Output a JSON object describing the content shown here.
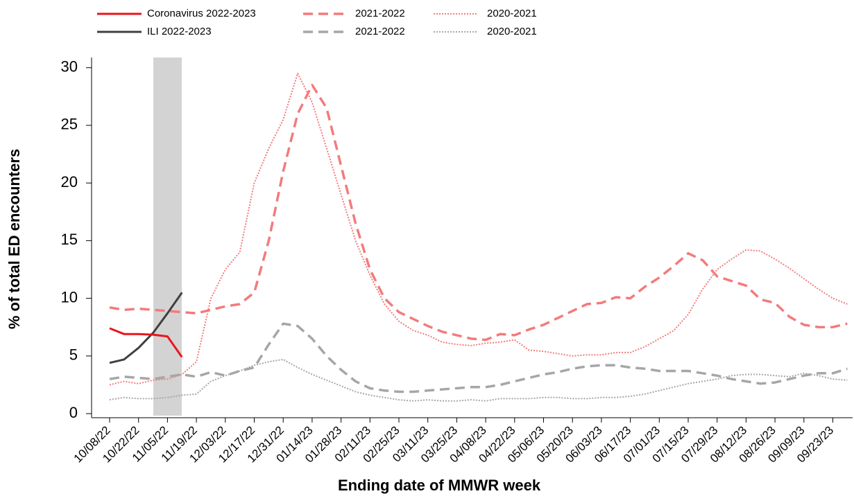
{
  "chart_data": {
    "type": "line",
    "x_label": "Ending date of MMWR week",
    "y_label": "% of total ED encounters",
    "categories": [
      "10/08/22",
      null,
      "10/22/22",
      null,
      "11/05/22",
      null,
      "11/19/22",
      null,
      "12/03/22",
      null,
      "12/17/22",
      null,
      "12/31/22",
      null,
      "01/14/23",
      null,
      "01/28/23",
      null,
      "02/11/23",
      null,
      "02/25/23",
      null,
      "03/11/23",
      null,
      "03/25/23",
      null,
      "04/08/23",
      null,
      "04/22/23",
      null,
      "05/06/23",
      null,
      "05/20/23",
      null,
      "06/03/23",
      null,
      "06/17/23",
      null,
      "07/01/23",
      null,
      "07/15/23",
      null,
      "07/29/23",
      null,
      "08/12/23",
      null,
      "08/26/23",
      null,
      "09/09/23",
      null,
      "09/23/23",
      null
    ],
    "ylim": [
      -0.4,
      30.2
    ],
    "yticks": [
      0,
      5,
      10,
      15,
      20,
      25,
      30
    ],
    "grid": false,
    "legend": "top",
    "series": [
      {
        "name": "Coronavirus 2022-2023",
        "color": "#e8161b",
        "dash": "solid",
        "values": [
          7.4,
          6.9,
          6.9,
          6.85,
          6.7,
          4.9,
          null,
          null,
          null,
          null,
          null,
          null,
          null,
          null,
          null,
          null,
          null,
          null,
          null,
          null,
          null,
          null,
          null,
          null,
          null,
          null,
          null,
          null,
          null,
          null,
          null,
          null,
          null,
          null,
          null,
          null,
          null,
          null,
          null,
          null,
          null,
          null,
          null,
          null,
          null,
          null,
          null,
          null,
          null,
          null,
          null,
          null
        ]
      },
      {
        "name": "ILI 2022-2023",
        "color": "#404040",
        "dash": "solid",
        "values": [
          4.4,
          4.7,
          5.7,
          7.0,
          8.7,
          10.5,
          null,
          null,
          null,
          null,
          null,
          null,
          null,
          null,
          null,
          null,
          null,
          null,
          null,
          null,
          null,
          null,
          null,
          null,
          null,
          null,
          null,
          null,
          null,
          null,
          null,
          null,
          null,
          null,
          null,
          null,
          null,
          null,
          null,
          null,
          null,
          null,
          null,
          null,
          null,
          null,
          null,
          null,
          null,
          null,
          null,
          null
        ]
      },
      {
        "name": "2021-2022",
        "color": "#f27b7b",
        "dash": "dashed",
        "values": [
          9.2,
          9.0,
          9.1,
          9.0,
          8.9,
          8.8,
          8.7,
          9.0,
          9.3,
          9.5,
          10.5,
          15,
          21,
          26,
          28.5,
          26.5,
          21.5,
          16.5,
          12.5,
          10,
          8.8,
          8.2,
          7.6,
          7.1,
          6.8,
          6.5,
          6.4,
          6.9,
          6.8,
          7.3,
          7.7,
          8.3,
          8.9,
          9.5,
          9.6,
          10.1,
          10.0,
          11.0,
          11.8,
          12.8,
          13.9,
          13.3,
          11.9,
          11.5,
          11.1,
          9.9,
          9.6,
          8.4,
          7.7,
          7.5,
          7.5,
          7.8
        ]
      },
      {
        "name": "2021-2022",
        "color": "#a6a6a6",
        "dash": "dashed",
        "values": [
          3.0,
          3.2,
          3.1,
          3.0,
          3.2,
          3.4,
          3.2,
          3.6,
          3.3,
          3.7,
          4.0,
          6.0,
          7.8,
          7.6,
          6.5,
          5.0,
          3.8,
          2.8,
          2.2,
          2.0,
          1.9,
          1.9,
          2.0,
          2.1,
          2.2,
          2.3,
          2.3,
          2.5,
          2.8,
          3.1,
          3.4,
          3.6,
          3.9,
          4.1,
          4.2,
          4.2,
          4.0,
          3.9,
          3.7,
          3.7,
          3.7,
          3.5,
          3.3,
          3.0,
          2.8,
          2.6,
          2.7,
          3.0,
          3.3,
          3.5,
          3.5,
          3.9
        ]
      },
      {
        "name": "2020-2021",
        "color": "#f27b7b",
        "dash": "dotted",
        "values": [
          2.5,
          2.8,
          2.6,
          2.9,
          3.0,
          3.4,
          4.5,
          10,
          12.5,
          14,
          20,
          23,
          25.5,
          29.5,
          27,
          23,
          19,
          15,
          12,
          9.5,
          8,
          7.2,
          6.8,
          6.2,
          6.0,
          5.9,
          6.1,
          6.2,
          6.4,
          5.5,
          5.4,
          5.2,
          5.0,
          5.1,
          5.1,
          5.3,
          5.3,
          5.8,
          6.5,
          7.2,
          8.6,
          10.8,
          12.5,
          13.4,
          14.2,
          14.1,
          13.4,
          12.6,
          11.7,
          10.8,
          10.0,
          9.5
        ]
      },
      {
        "name": "2020-2021",
        "color": "#a6a6a6",
        "dash": "dotted",
        "values": [
          1.2,
          1.4,
          1.3,
          1.3,
          1.4,
          1.6,
          1.7,
          2.8,
          3.3,
          3.7,
          4.2,
          4.5,
          4.7,
          4.0,
          3.4,
          2.9,
          2.4,
          1.9,
          1.6,
          1.4,
          1.2,
          1.1,
          1.2,
          1.1,
          1.1,
          1.2,
          1.1,
          1.3,
          1.3,
          1.3,
          1.4,
          1.4,
          1.3,
          1.3,
          1.4,
          1.4,
          1.5,
          1.7,
          2.0,
          2.3,
          2.6,
          2.8,
          3.0,
          3.3,
          3.4,
          3.4,
          3.3,
          3.2,
          3.5,
          3.3,
          3.0,
          2.9
        ]
      }
    ]
  }
}
